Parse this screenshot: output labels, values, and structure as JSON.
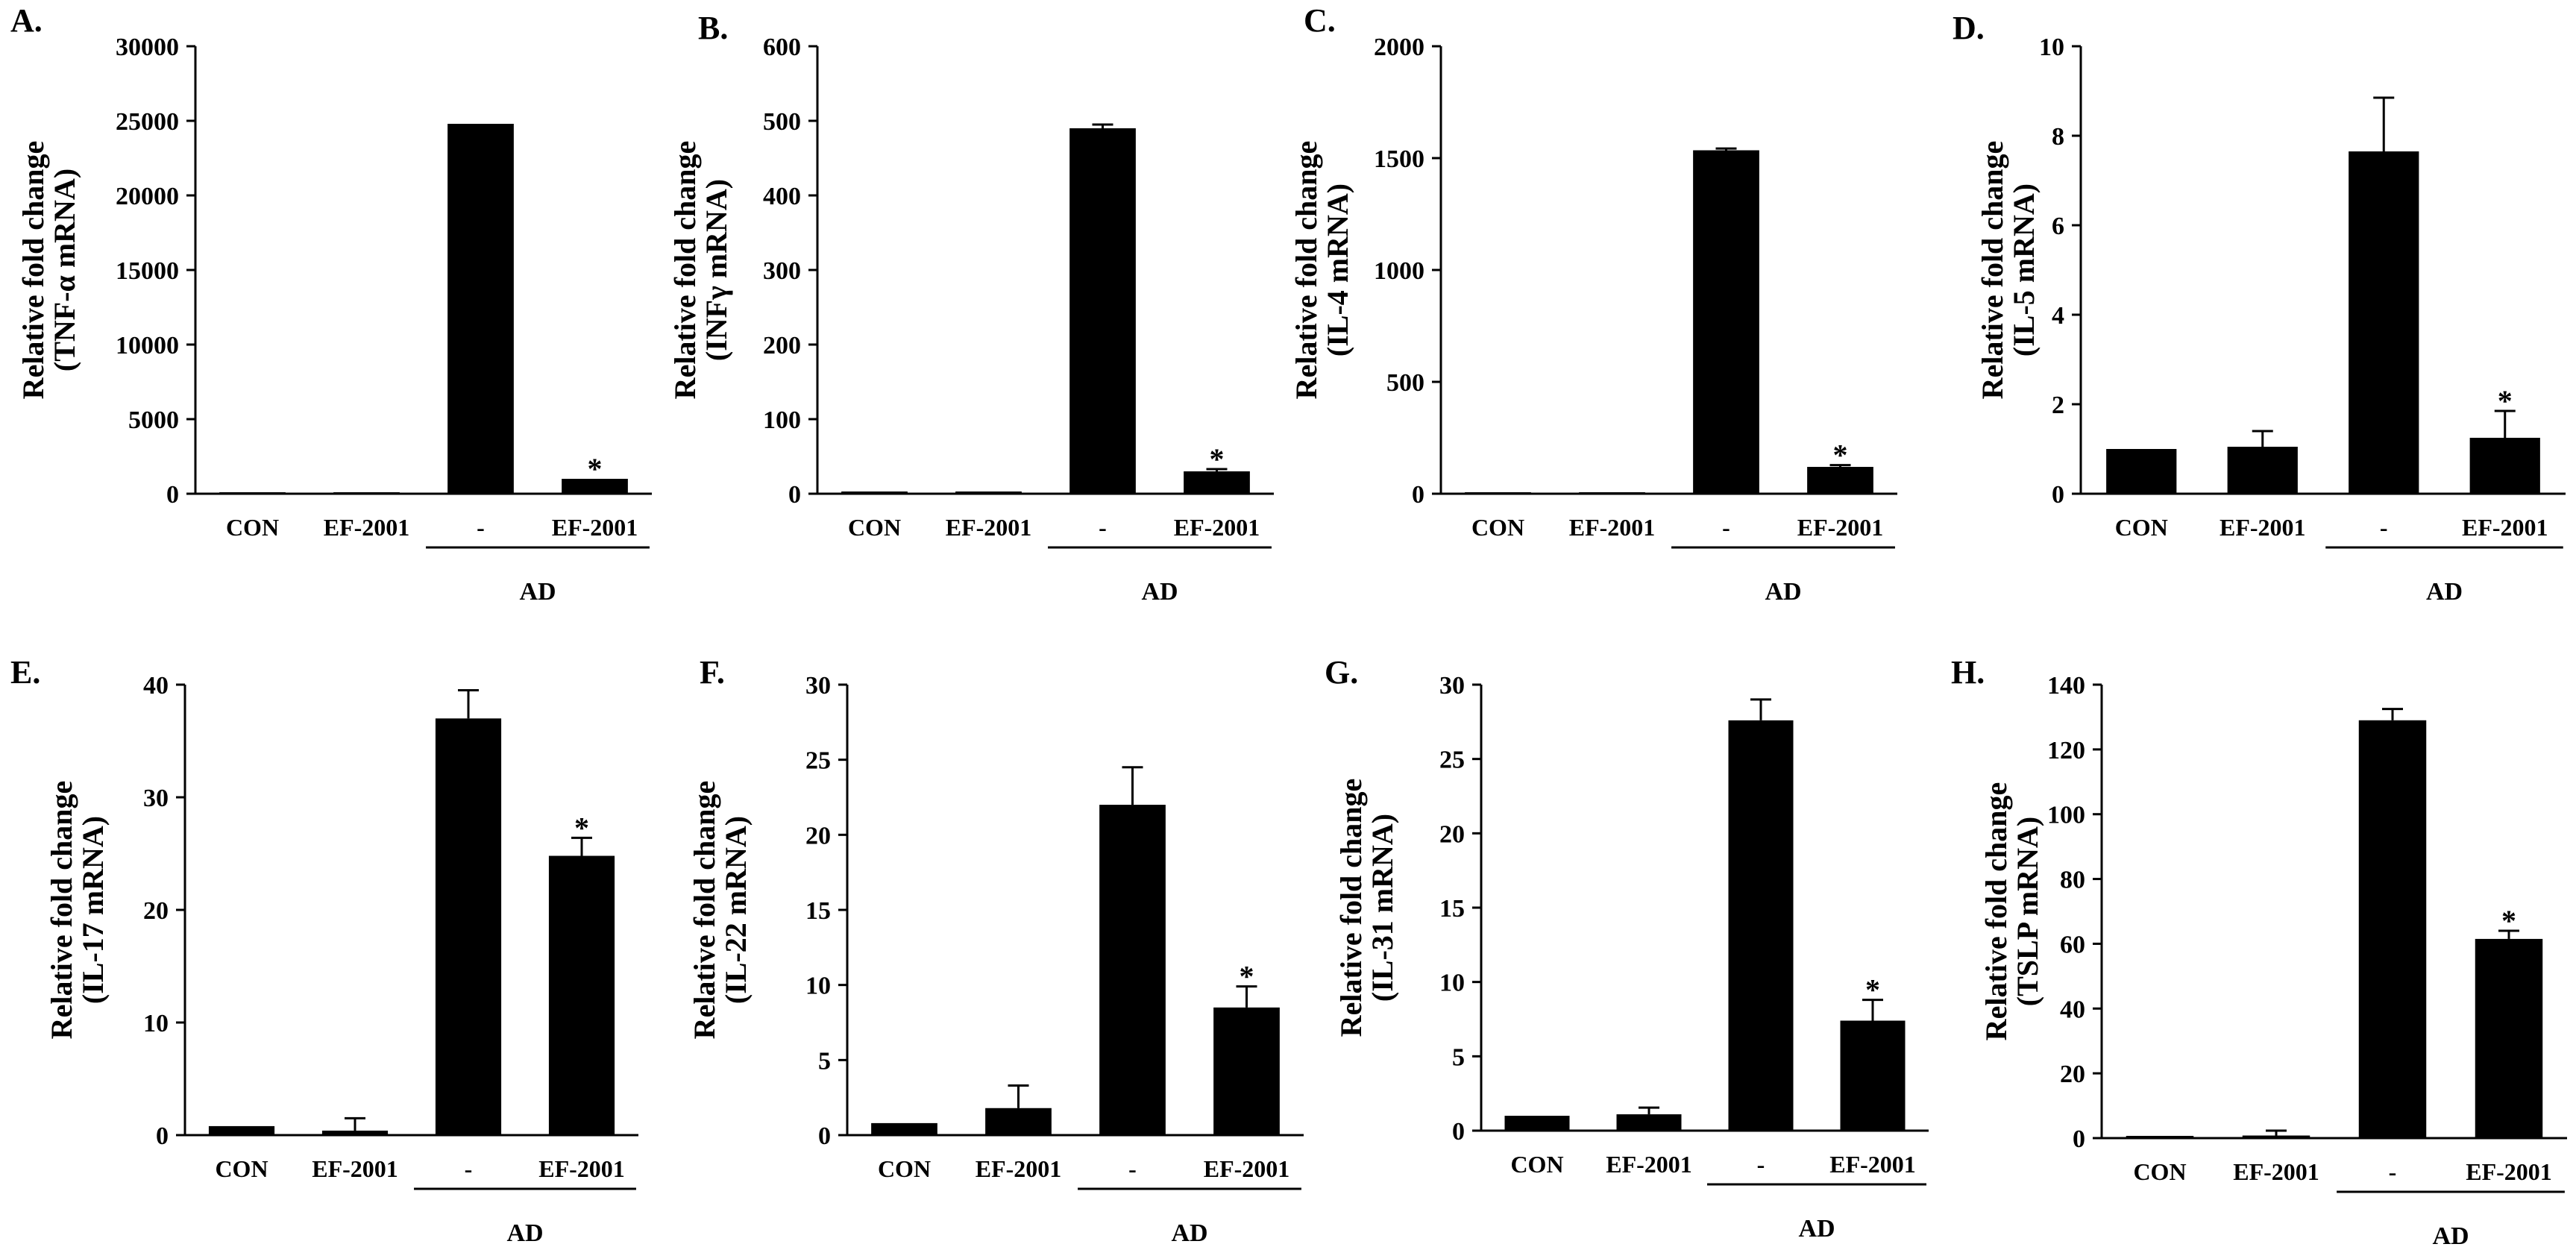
{
  "colors": {
    "bar": "#000000",
    "axis": "#000000",
    "background": "#ffffff"
  },
  "chart_data": [
    {
      "panel": "A.",
      "type": "bar",
      "ylabel_line1": "Relative fold change",
      "ylabel_line2": "(TNF-α mRNA)",
      "categories": [
        "CON",
        "EF-2001",
        "-",
        "EF-2001"
      ],
      "group_label": "AD",
      "values": [
        0,
        0,
        24800,
        1000
      ],
      "errors": [
        0,
        0,
        0,
        0
      ],
      "significant": [
        false,
        false,
        false,
        true
      ],
      "ylim": [
        0,
        30000
      ],
      "yticks": [
        0,
        5000,
        10000,
        15000,
        20000,
        25000,
        30000
      ],
      "ytick_labels": [
        "0",
        "5000",
        "10000",
        "15000",
        "20000",
        "25000",
        "30000"
      ]
    },
    {
      "panel": "B.",
      "type": "bar",
      "ylabel_line1": "Relative fold change",
      "ylabel_line2": "(INFγ mRNA)",
      "categories": [
        "CON",
        "EF-2001",
        "-",
        "EF-2001"
      ],
      "group_label": "AD",
      "values": [
        2,
        2,
        490,
        30
      ],
      "errors": [
        0,
        0,
        5,
        3
      ],
      "significant": [
        false,
        false,
        false,
        true
      ],
      "ylim": [
        0,
        600
      ],
      "yticks": [
        0,
        100,
        200,
        300,
        400,
        500,
        600
      ],
      "ytick_labels": [
        "0",
        "100",
        "200",
        "300",
        "400",
        "500",
        "600"
      ]
    },
    {
      "panel": "C.",
      "type": "bar",
      "ylabel_line1": "Relative fold change",
      "ylabel_line2": "(IL-4 mRNA)",
      "categories": [
        "CON",
        "EF-2001",
        "-",
        "EF-2001"
      ],
      "group_label": "AD",
      "values": [
        0,
        0,
        1535,
        120
      ],
      "errors": [
        0,
        0,
        8,
        8
      ],
      "significant": [
        false,
        false,
        false,
        true
      ],
      "ylim": [
        0,
        2000
      ],
      "yticks": [
        0,
        500,
        1000,
        1500,
        2000
      ],
      "ytick_labels": [
        "0",
        "500",
        "1000",
        "1500",
        "2000"
      ]
    },
    {
      "panel": "D.",
      "type": "bar",
      "ylabel_line1": "Relative fold change",
      "ylabel_line2": "(IL-5 mRNA)",
      "categories": [
        "CON",
        "EF-2001",
        "-",
        "EF-2001"
      ],
      "group_label": "AD",
      "values": [
        1.0,
        1.05,
        7.65,
        1.25
      ],
      "errors": [
        0,
        0.35,
        1.2,
        0.6
      ],
      "significant": [
        false,
        false,
        false,
        true
      ],
      "ylim": [
        0,
        10
      ],
      "yticks": [
        0,
        2,
        4,
        6,
        8,
        10
      ],
      "ytick_labels": [
        "0",
        "2",
        "4",
        "6",
        "8",
        "10"
      ]
    },
    {
      "panel": "E.",
      "type": "bar",
      "ylabel_line1": "Relative fold change",
      "ylabel_line2": "(IL-17 mRNA)",
      "categories": [
        "CON",
        "EF-2001",
        "-",
        "EF-2001"
      ],
      "group_label": "AD",
      "values": [
        0.8,
        0.4,
        37,
        24.8
      ],
      "errors": [
        0,
        1.1,
        2.5,
        1.6
      ],
      "significant": [
        false,
        false,
        false,
        true
      ],
      "ylim": [
        0,
        40
      ],
      "yticks": [
        0,
        10,
        20,
        30,
        40
      ],
      "ytick_labels": [
        "0",
        "10",
        "20",
        "30",
        "40"
      ]
    },
    {
      "panel": "F.",
      "type": "bar",
      "ylabel_line1": "Relative fold change",
      "ylabel_line2": "(IL-22 mRNA)",
      "categories": [
        "CON",
        "EF-2001",
        "-",
        "EF-2001"
      ],
      "group_label": "AD",
      "values": [
        0.8,
        1.8,
        22,
        8.5
      ],
      "errors": [
        0,
        1.5,
        2.5,
        1.4
      ],
      "significant": [
        false,
        false,
        false,
        true
      ],
      "ylim": [
        0,
        30
      ],
      "yticks": [
        0,
        5,
        10,
        15,
        20,
        25,
        30
      ],
      "ytick_labels": [
        "0",
        "5",
        "10",
        "15",
        "20",
        "25",
        "30"
      ]
    },
    {
      "panel": "G.",
      "type": "bar",
      "ylabel_line1": "Relative fold change",
      "ylabel_line2": "(IL-31 mRNA)",
      "categories": [
        "CON",
        "EF-2001",
        "-",
        "EF-2001"
      ],
      "group_label": "AD",
      "values": [
        1.0,
        1.1,
        27.6,
        7.4
      ],
      "errors": [
        0,
        0.45,
        1.4,
        1.4
      ],
      "significant": [
        false,
        false,
        false,
        true
      ],
      "ylim": [
        0,
        30
      ],
      "yticks": [
        0,
        5,
        10,
        15,
        20,
        25,
        30
      ],
      "ytick_labels": [
        "0",
        "5",
        "10",
        "15",
        "20",
        "25",
        "30"
      ]
    },
    {
      "panel": "H.",
      "type": "bar",
      "ylabel_line1": "Relative fold change",
      "ylabel_line2": "(TSLP mRNA)",
      "categories": [
        "CON",
        "EF-2001",
        "-",
        "EF-2001"
      ],
      "group_label": "AD",
      "values": [
        0.5,
        0.8,
        129,
        61.5
      ],
      "errors": [
        0,
        1.5,
        3.5,
        2.5
      ],
      "significant": [
        false,
        false,
        false,
        true
      ],
      "ylim": [
        0,
        140
      ],
      "yticks": [
        0,
        20,
        40,
        60,
        80,
        100,
        120,
        140
      ],
      "ytick_labels": [
        "0",
        "20",
        "40",
        "60",
        "80",
        "100",
        "120",
        "140"
      ]
    }
  ],
  "significance_marker": "*"
}
